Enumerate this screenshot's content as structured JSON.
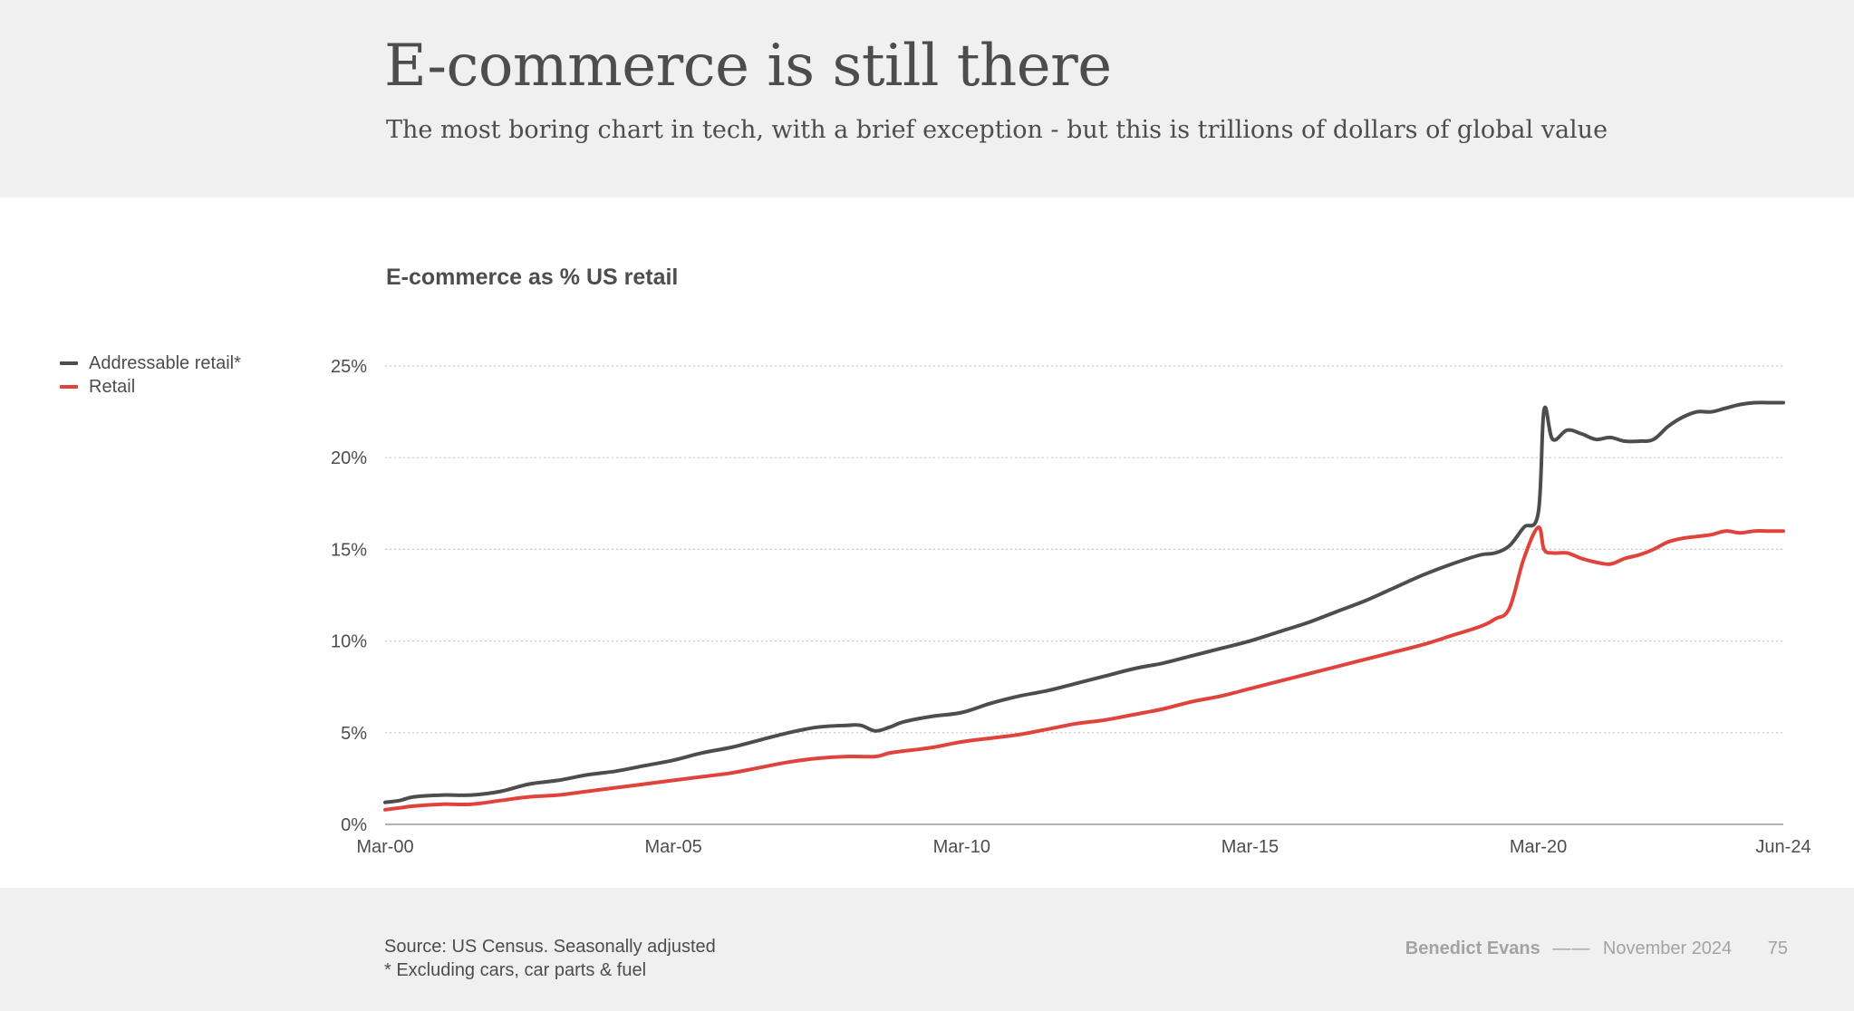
{
  "header": {
    "title": "E-commerce is still there",
    "subtitle": "The most boring chart in tech, with a brief exception - but this is trillions of dollars of global value"
  },
  "colors": {
    "addressable": "#4d4d4d",
    "retail": "#e0433c",
    "grid": "#c8c8c8",
    "header_bg": "#f0f0f0"
  },
  "chart_data": {
    "type": "line",
    "title": "E-commerce as % US retail",
    "xlabel": "",
    "ylabel": "",
    "ylim": [
      0,
      25
    ],
    "yticks": [
      0,
      5,
      10,
      15,
      20,
      25
    ],
    "ytick_labels": [
      "0%",
      "5%",
      "10%",
      "15%",
      "20%",
      "25%"
    ],
    "xlim": [
      2000.0,
      2024.25
    ],
    "xticks": [
      2000.0,
      2005.0,
      2010.0,
      2015.0,
      2020.0,
      2024.25
    ],
    "xtick_labels": [
      "Mar-00",
      "Mar-05",
      "Mar-10",
      "Mar-15",
      "Mar-20",
      "Jun-24"
    ],
    "grid": true,
    "legend": "top-left",
    "series": [
      {
        "name": "Addressable retail*",
        "color": "#4d4d4d",
        "x": [
          2000.0,
          2000.25,
          2000.5,
          2001.0,
          2001.5,
          2002.0,
          2002.5,
          2003.0,
          2003.5,
          2004.0,
          2004.5,
          2005.0,
          2005.5,
          2006.0,
          2006.5,
          2007.0,
          2007.5,
          2008.0,
          2008.25,
          2008.5,
          2008.75,
          2009.0,
          2009.5,
          2010.0,
          2010.5,
          2011.0,
          2011.5,
          2012.0,
          2012.5,
          2013.0,
          2013.5,
          2014.0,
          2014.5,
          2015.0,
          2015.5,
          2016.0,
          2016.5,
          2017.0,
          2017.5,
          2018.0,
          2018.5,
          2019.0,
          2019.25,
          2019.5,
          2019.75,
          2020.0,
          2020.1,
          2020.25,
          2020.5,
          2020.75,
          2021.0,
          2021.25,
          2021.5,
          2021.75,
          2022.0,
          2022.25,
          2022.5,
          2022.75,
          2023.0,
          2023.25,
          2023.5,
          2023.75,
          2024.0,
          2024.25
        ],
        "values": [
          1.2,
          1.3,
          1.5,
          1.6,
          1.6,
          1.8,
          2.2,
          2.4,
          2.7,
          2.9,
          3.2,
          3.5,
          3.9,
          4.2,
          4.6,
          5.0,
          5.3,
          5.4,
          5.4,
          5.1,
          5.3,
          5.6,
          5.9,
          6.1,
          6.6,
          7.0,
          7.3,
          7.7,
          8.1,
          8.5,
          8.8,
          9.2,
          9.6,
          10.0,
          10.5,
          11.0,
          11.6,
          12.2,
          12.9,
          13.6,
          14.2,
          14.7,
          14.8,
          15.2,
          16.2,
          17.0,
          22.6,
          21.0,
          21.5,
          21.3,
          21.0,
          21.1,
          20.9,
          20.9,
          21.0,
          21.7,
          22.2,
          22.5,
          22.5,
          22.7,
          22.9,
          23.0,
          23.0,
          23.0
        ]
      },
      {
        "name": "Retail",
        "color": "#e0433c",
        "x": [
          2000.0,
          2000.25,
          2000.5,
          2001.0,
          2001.5,
          2002.0,
          2002.5,
          2003.0,
          2003.5,
          2004.0,
          2004.5,
          2005.0,
          2005.5,
          2006.0,
          2006.5,
          2007.0,
          2007.5,
          2008.0,
          2008.5,
          2008.75,
          2009.0,
          2009.5,
          2010.0,
          2010.5,
          2011.0,
          2011.5,
          2012.0,
          2012.5,
          2013.0,
          2013.5,
          2014.0,
          2014.5,
          2015.0,
          2015.5,
          2016.0,
          2016.5,
          2017.0,
          2017.5,
          2018.0,
          2018.5,
          2019.0,
          2019.25,
          2019.5,
          2019.75,
          2020.0,
          2020.1,
          2020.25,
          2020.5,
          2020.75,
          2021.0,
          2021.25,
          2021.5,
          2021.75,
          2022.0,
          2022.25,
          2022.5,
          2022.75,
          2023.0,
          2023.25,
          2023.5,
          2023.75,
          2024.0,
          2024.25
        ],
        "values": [
          0.8,
          0.9,
          1.0,
          1.1,
          1.1,
          1.3,
          1.5,
          1.6,
          1.8,
          2.0,
          2.2,
          2.4,
          2.6,
          2.8,
          3.1,
          3.4,
          3.6,
          3.7,
          3.7,
          3.9,
          4.0,
          4.2,
          4.5,
          4.7,
          4.9,
          5.2,
          5.5,
          5.7,
          6.0,
          6.3,
          6.7,
          7.0,
          7.4,
          7.8,
          8.2,
          8.6,
          9.0,
          9.4,
          9.8,
          10.3,
          10.8,
          11.2,
          11.8,
          14.5,
          16.2,
          15.0,
          14.8,
          14.8,
          14.5,
          14.3,
          14.2,
          14.5,
          14.7,
          15.0,
          15.4,
          15.6,
          15.7,
          15.8,
          16.0,
          15.9,
          16.0,
          16.0,
          16.0
        ]
      }
    ]
  },
  "legend": {
    "items": [
      {
        "label": "Addressable retail*",
        "color": "#4d4d4d"
      },
      {
        "label": "Retail",
        "color": "#e0433c"
      }
    ]
  },
  "footer": {
    "source_line1": "Source: US Census. Seasonally adjusted",
    "source_line2": "* Excluding cars, car parts & fuel",
    "author": "Benedict Evans",
    "separator": "——",
    "date": "November 2024",
    "page_number": "75"
  }
}
